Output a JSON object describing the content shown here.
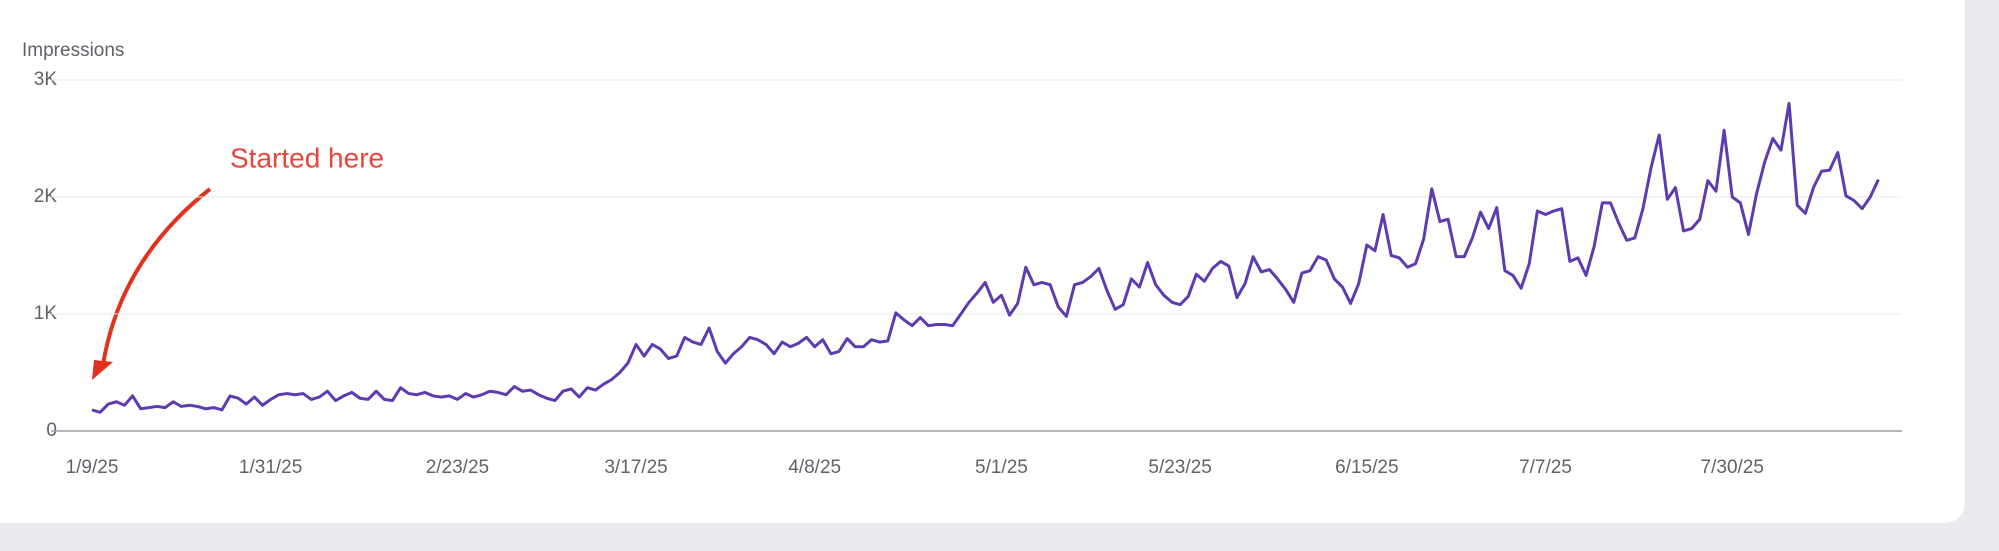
{
  "chart_data": {
    "type": "line",
    "y_label": "Impressions",
    "annotation": "Started here",
    "x": [
      "1/9/25",
      "1/10/25",
      "1/11/25",
      "1/12/25",
      "1/13/25",
      "1/14/25",
      "1/15/25",
      "1/16/25",
      "1/17/25",
      "1/18/25",
      "1/19/25",
      "1/20/25",
      "1/21/25",
      "1/22/25",
      "1/23/25",
      "1/24/25",
      "1/25/25",
      "1/26/25",
      "1/27/25",
      "1/28/25",
      "1/29/25",
      "1/30/25",
      "1/31/25",
      "2/1/25",
      "2/2/25",
      "2/3/25",
      "2/4/25",
      "2/5/25",
      "2/6/25",
      "2/7/25",
      "2/8/25",
      "2/9/25",
      "2/10/25",
      "2/11/25",
      "2/12/25",
      "2/13/25",
      "2/14/25",
      "2/15/25",
      "2/16/25",
      "2/17/25",
      "2/18/25",
      "2/19/25",
      "2/20/25",
      "2/21/25",
      "2/22/25",
      "2/23/25",
      "2/24/25",
      "2/25/25",
      "2/26/25",
      "2/27/25",
      "2/28/25",
      "3/1/25",
      "3/2/25",
      "3/3/25",
      "3/4/25",
      "3/5/25",
      "3/6/25",
      "3/7/25",
      "3/8/25",
      "3/9/25",
      "3/10/25",
      "3/11/25",
      "3/12/25",
      "3/13/25",
      "3/14/25",
      "3/15/25",
      "3/16/25",
      "3/17/25",
      "3/18/25",
      "3/19/25",
      "3/20/25",
      "3/21/25",
      "3/22/25",
      "3/23/25",
      "3/24/25",
      "3/25/25",
      "3/26/25",
      "3/27/25",
      "3/28/25",
      "3/29/25",
      "3/30/25",
      "3/31/25",
      "4/1/25",
      "4/2/25",
      "4/3/25",
      "4/4/25",
      "4/5/25",
      "4/6/25",
      "4/7/25",
      "4/8/25",
      "4/9/25",
      "4/10/25",
      "4/11/25",
      "4/12/25",
      "4/13/25",
      "4/14/25",
      "4/15/25",
      "4/16/25",
      "4/17/25",
      "4/18/25",
      "4/19/25",
      "4/20/25",
      "4/21/25",
      "4/22/25",
      "4/23/25",
      "4/24/25",
      "4/25/25",
      "4/26/25",
      "4/27/25",
      "4/28/25",
      "4/29/25",
      "4/30/25",
      "5/1/25",
      "5/2/25",
      "5/3/25",
      "5/4/25",
      "5/5/25",
      "5/6/25",
      "5/7/25",
      "5/8/25",
      "5/9/25",
      "5/10/25",
      "5/11/25",
      "5/12/25",
      "5/13/25",
      "5/14/25",
      "5/15/25",
      "5/16/25",
      "5/17/25",
      "5/18/25",
      "5/19/25",
      "5/20/25",
      "5/21/25",
      "5/22/25",
      "5/23/25",
      "5/24/25",
      "5/25/25",
      "5/26/25",
      "5/27/25",
      "5/28/25",
      "5/29/25",
      "5/30/25",
      "5/31/25",
      "6/1/25",
      "6/2/25",
      "6/3/25",
      "6/4/25",
      "6/5/25",
      "6/6/25",
      "6/7/25",
      "6/8/25",
      "6/9/25",
      "6/10/25",
      "6/11/25",
      "6/12/25",
      "6/13/25",
      "6/14/25",
      "6/15/25",
      "6/16/25",
      "6/17/25",
      "6/18/25",
      "6/19/25",
      "6/20/25",
      "6/21/25",
      "6/22/25",
      "6/23/25",
      "6/24/25",
      "6/25/25",
      "6/26/25",
      "6/27/25",
      "6/28/25",
      "6/29/25",
      "6/30/25",
      "7/1/25",
      "7/2/25",
      "7/3/25",
      "7/4/25",
      "7/5/25",
      "7/6/25",
      "7/7/25",
      "7/8/25",
      "7/9/25",
      "7/10/25",
      "7/11/25",
      "7/12/25",
      "7/13/25",
      "7/14/25",
      "7/15/25",
      "7/16/25",
      "7/17/25",
      "7/18/25",
      "7/19/25",
      "7/20/25",
      "7/21/25",
      "7/22/25",
      "7/23/25",
      "7/24/25",
      "7/25/25",
      "7/26/25",
      "7/27/25",
      "7/28/25",
      "7/29/25",
      "7/30/25",
      "7/31/25",
      "8/1/25",
      "8/2/25",
      "8/3/25",
      "8/4/25",
      "8/5/25",
      "8/6/25",
      "8/7/25",
      "8/8/25",
      "8/9/25",
      "8/10/25",
      "8/11/25",
      "8/12/25",
      "8/13/25",
      "8/14/25",
      "8/15/25",
      "8/16/25",
      "8/17/25"
    ],
    "series": [
      {
        "name": "Impressions",
        "color": "#5e3bb0",
        "values": [
          180,
          160,
          230,
          250,
          220,
          300,
          190,
          200,
          210,
          200,
          250,
          210,
          220,
          210,
          190,
          200,
          180,
          300,
          280,
          230,
          290,
          220,
          270,
          310,
          320,
          310,
          320,
          270,
          290,
          340,
          260,
          300,
          330,
          280,
          270,
          340,
          270,
          260,
          370,
          320,
          310,
          330,
          300,
          290,
          300,
          270,
          320,
          290,
          310,
          340,
          330,
          310,
          380,
          340,
          350,
          310,
          280,
          260,
          340,
          360,
          290,
          370,
          350,
          400,
          440,
          500,
          580,
          740,
          640,
          740,
          700,
          620,
          640,
          800,
          760,
          740,
          880,
          680,
          580,
          660,
          720,
          800,
          780,
          740,
          660,
          760,
          720,
          750,
          800,
          720,
          780,
          660,
          680,
          790,
          720,
          720,
          780,
          760,
          770,
          1010,
          950,
          900,
          970,
          900,
          910,
          910,
          900,
          1000,
          1100,
          1180,
          1270,
          1100,
          1160,
          990,
          1090,
          1400,
          1250,
          1270,
          1250,
          1060,
          980,
          1250,
          1270,
          1320,
          1390,
          1200,
          1040,
          1080,
          1300,
          1230,
          1440,
          1250,
          1160,
          1100,
          1080,
          1150,
          1340,
          1280,
          1390,
          1450,
          1410,
          1140,
          1260,
          1490,
          1360,
          1380,
          1300,
          1210,
          1100,
          1350,
          1370,
          1490,
          1460,
          1300,
          1230,
          1090,
          1260,
          1590,
          1540,
          1850,
          1500,
          1480,
          1400,
          1430,
          1640,
          2070,
          1790,
          1810,
          1490,
          1490,
          1650,
          1870,
          1730,
          1910,
          1370,
          1330,
          1220,
          1430,
          1880,
          1850,
          1880,
          1900,
          1450,
          1480,
          1330,
          1580,
          1950,
          1950,
          1780,
          1630,
          1650,
          1900,
          2250,
          2530,
          1980,
          2080,
          1710,
          1730,
          1810,
          2140,
          2050,
          2570,
          2000,
          1950,
          1680,
          2030,
          2300,
          2500,
          2400,
          2800,
          1930,
          1860,
          2080,
          2220,
          2230,
          2380,
          2010,
          1970,
          1900,
          2000,
          2150
        ]
      }
    ],
    "xticks": [
      "1/9/25",
      "1/31/25",
      "2/23/25",
      "3/17/25",
      "4/8/25",
      "5/1/25",
      "5/23/25",
      "6/15/25",
      "7/7/25",
      "7/30/25"
    ],
    "ylim": [
      0,
      3000
    ],
    "yticks": [
      0,
      {
        "value": 1000,
        "label": "1K"
      },
      {
        "value": 2000,
        "label": "2K"
      },
      {
        "value": 3000,
        "label": "3K"
      }
    ],
    "grid": true
  }
}
